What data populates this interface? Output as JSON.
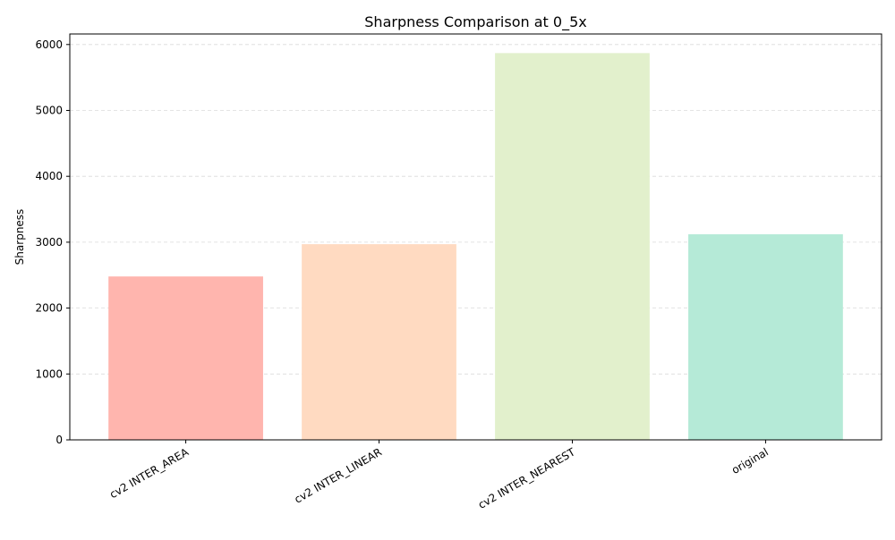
{
  "chart_data": {
    "type": "bar",
    "title": "Sharpness Comparison at 0_5x",
    "xlabel": "",
    "ylabel": "Sharpness",
    "categories": [
      "cv2 INTER_AREA",
      "cv2 INTER_LINEAR",
      "cv2 INTER_NEAREST",
      "original"
    ],
    "values": [
      2480,
      2970,
      5870,
      3120
    ],
    "colors": [
      "#ffb5ae",
      "#ffdac1",
      "#e2f0cc",
      "#b5ead7"
    ],
    "ylim": [
      0,
      6160
    ],
    "yticks": [
      0,
      1000,
      2000,
      3000,
      4000,
      5000,
      6000
    ],
    "ytick_labels": [
      "0",
      "1000",
      "2000",
      "3000",
      "4000",
      "5000",
      "6000"
    ],
    "grid": "y-dashed",
    "xtick_rotation_deg": 30
  }
}
